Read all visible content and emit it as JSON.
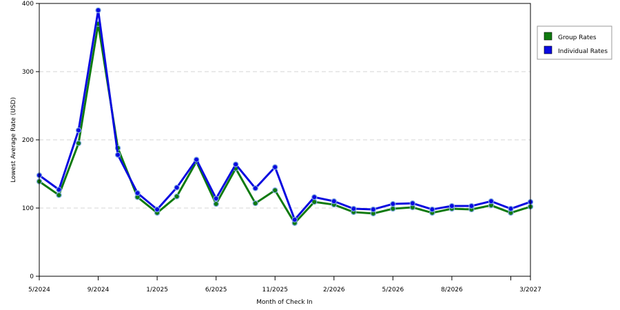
{
  "chart_data": {
    "type": "line",
    "title": "",
    "xlabel": "Month of Check In",
    "ylabel": "Lowest Average Rate (USD)",
    "ylim": [
      0,
      400
    ],
    "yticks": [
      0,
      100,
      200,
      300,
      400
    ],
    "grid": true,
    "legend_position": "top-right",
    "x_tick_labels": [
      {
        "index": 0,
        "label": "5/2024"
      },
      {
        "index": 3,
        "label": "9/2024"
      },
      {
        "index": 6,
        "label": "1/2025"
      },
      {
        "index": 9,
        "label": "6/2025"
      },
      {
        "index": 12,
        "label": "11/2025"
      },
      {
        "index": 15,
        "label": "2/2026"
      },
      {
        "index": 18,
        "label": "5/2026"
      },
      {
        "index": 21,
        "label": "8/2026"
      },
      {
        "index": 24,
        "label": ""
      },
      {
        "index": 25,
        "label": "3/2027"
      }
    ],
    "series": [
      {
        "name": "Group Rates",
        "color": "#0f7a0f",
        "values": [
          {
            "i": 0,
            "v": 139
          },
          {
            "i": 1,
            "v": 119
          },
          {
            "i": 2,
            "v": 195
          },
          {
            "i": 3,
            "v": 370
          },
          {
            "i": 4,
            "v": 188
          },
          {
            "i": 5,
            "v": 116
          },
          {
            "i": 6,
            "v": 93
          },
          {
            "i": 7,
            "v": 117
          },
          {
            "i": 8,
            "v": 168
          },
          {
            "i": 9,
            "v": 106
          },
          {
            "i": 10,
            "v": 158
          },
          {
            "i": 11,
            "v": 107
          },
          {
            "i": 12,
            "v": 126
          },
          {
            "i": 13,
            "v": 78
          },
          {
            "i": 14,
            "v": 109
          },
          {
            "i": 15,
            "v": 105
          },
          {
            "i": 16,
            "v": 94
          },
          {
            "i": 17,
            "v": 92
          },
          {
            "i": 18,
            "v": 99
          },
          {
            "i": 19,
            "v": 101
          },
          {
            "i": 20,
            "v": 93
          },
          {
            "i": 21,
            "v": 99
          },
          {
            "i": 22,
            "v": 98
          },
          {
            "i": 23,
            "v": 104
          },
          {
            "i": 24,
            "v": 93
          },
          {
            "i": 25,
            "v": 102
          }
        ]
      },
      {
        "name": "Individual Rates",
        "color": "#0a0ae0",
        "values": [
          {
            "i": 0,
            "v": 148
          },
          {
            "i": 1,
            "v": 127
          },
          {
            "i": 2,
            "v": 214
          },
          {
            "i": 3,
            "v": 390
          },
          {
            "i": 4,
            "v": 178
          },
          {
            "i": 5,
            "v": 122
          },
          {
            "i": 6,
            "v": 98
          },
          {
            "i": 7,
            "v": 130
          },
          {
            "i": 8,
            "v": 171
          },
          {
            "i": 9,
            "v": 114
          },
          {
            "i": 10,
            "v": 164
          },
          {
            "i": 11,
            "v": 129
          },
          {
            "i": 12,
            "v": 160
          },
          {
            "i": 13,
            "v": 83
          },
          {
            "i": 14,
            "v": 116
          },
          {
            "i": 15,
            "v": 110
          },
          {
            "i": 16,
            "v": 99
          },
          {
            "i": 17,
            "v": 98
          },
          {
            "i": 18,
            "v": 106
          },
          {
            "i": 19,
            "v": 107
          },
          {
            "i": 20,
            "v": 98
          },
          {
            "i": 21,
            "v": 103
          },
          {
            "i": 22,
            "v": 103
          },
          {
            "i": 23,
            "v": 110
          },
          {
            "i": 24,
            "v": 99
          },
          {
            "i": 25,
            "v": 109
          }
        ]
      }
    ]
  }
}
